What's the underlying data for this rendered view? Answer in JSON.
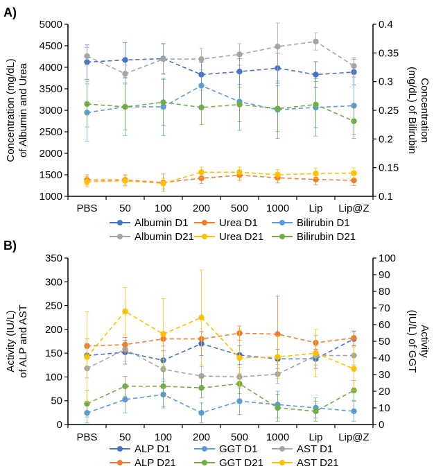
{
  "chart_data": [
    {
      "panel_label": "A)",
      "type": "line",
      "categories": [
        "PBS",
        "50",
        "100",
        "200",
        "500",
        "1000",
        "Lip",
        "Lip@Z"
      ],
      "ylabel_left": "Concentration (mg/dL) of Albumin and Urea",
      "ylabel_right": "Concentration (mg/dL) of Bilirubin",
      "ylim_left": [
        1000,
        5000
      ],
      "yticks_left": [
        1000,
        1500,
        2000,
        2500,
        3000,
        3500,
        4000,
        4500,
        5000
      ],
      "ylim_right": [
        0.1,
        0.4
      ],
      "yticks_right": [
        0.1,
        0.15,
        0.2,
        0.25,
        0.3,
        0.35,
        0.4
      ],
      "ytick_labels_right": [
        "0.1",
        "0.15",
        "0.2",
        "0.25",
        "0.3",
        "0.35",
        "0.4"
      ],
      "legend_placement": "bottom",
      "series": [
        {
          "name": "Albumin D1",
          "axis": "left",
          "color": "#4472C4",
          "values": [
            4120,
            4170,
            4200,
            3830,
            3900,
            3980,
            3830,
            3890
          ],
          "err": [
            400,
            400,
            350,
            300,
            300,
            350,
            300,
            300
          ]
        },
        {
          "name": "Urea D1",
          "axis": "left",
          "color": "#ED7D31",
          "values": [
            1380,
            1380,
            1320,
            1420,
            1490,
            1430,
            1390,
            1370
          ],
          "err": [
            120,
            120,
            200,
            120,
            120,
            120,
            120,
            120
          ]
        },
        {
          "name": "Bilirubin D1",
          "axis": "right",
          "color": "#5B9BD5",
          "values": [
            0.246,
            0.256,
            0.256,
            0.293,
            0.265,
            0.251,
            0.255,
            0.258
          ],
          "err": [
            0.05,
            0.05,
            0.05,
            0.04,
            0.05,
            0.05,
            0.05,
            0.05
          ]
        },
        {
          "name": "Albumin D21",
          "axis": "left",
          "color": "#A5A5A5",
          "values": [
            4260,
            3850,
            4190,
            4190,
            4300,
            4480,
            4600,
            4030
          ],
          "err": [
            200,
            200,
            350,
            250,
            250,
            550,
            200,
            200
          ]
        },
        {
          "name": "Urea D21",
          "axis": "left",
          "color": "#FFC000",
          "values": [
            1340,
            1360,
            1300,
            1560,
            1560,
            1500,
            1530,
            1540
          ],
          "err": [
            120,
            120,
            120,
            120,
            120,
            120,
            120,
            120
          ]
        },
        {
          "name": "Bilirubin D21",
          "axis": "right",
          "color": "#70AD47",
          "values": [
            0.261,
            0.256,
            0.264,
            0.255,
            0.26,
            0.253,
            0.26,
            0.231
          ],
          "err": [
            0.04,
            0.04,
            0.04,
            0.03,
            0.03,
            0.04,
            0.04,
            0.03
          ]
        }
      ]
    },
    {
      "panel_label": "B)",
      "type": "line",
      "categories": [
        "PBS",
        "50",
        "100",
        "200",
        "500",
        "1000",
        "Lip",
        "Lip@Z"
      ],
      "ylabel_left": "Activity (IU/L) of ALP and AST",
      "ylabel_right": "Activity (IU/L) of GGT",
      "ylim_left": [
        0,
        350
      ],
      "yticks_left": [
        0,
        50,
        100,
        150,
        200,
        250,
        300,
        350
      ],
      "ylim_right": [
        0,
        100
      ],
      "yticks_right": [
        0,
        10,
        20,
        30,
        40,
        50,
        60,
        70,
        80,
        90,
        100
      ],
      "legend_placement": "bottom",
      "series": [
        {
          "name": "ALP D1",
          "axis": "left",
          "color": "#4472C4",
          "values": [
            145,
            152,
            135,
            170,
            146,
            138,
            138,
            180
          ],
          "err": [
            25,
            25,
            20,
            25,
            20,
            20,
            20,
            15
          ]
        },
        {
          "name": "GGT D1",
          "axis": "right",
          "color": "#5B9BD5",
          "values": [
            7,
            15,
            18,
            7,
            14,
            12,
            10,
            8
          ],
          "err": [
            6,
            8,
            8,
            6,
            8,
            8,
            6,
            6
          ]
        },
        {
          "name": "AST D1",
          "axis": "left",
          "color": "#A5A5A5",
          "values": [
            118,
            158,
            116,
            102,
            100,
            106,
            145,
            145
          ],
          "err": [
            20,
            25,
            20,
            20,
            20,
            20,
            20,
            20
          ]
        },
        {
          "name": "ALP D21",
          "axis": "left",
          "color": "#ED7D31",
          "values": [
            165,
            168,
            180,
            180,
            192,
            190,
            172,
            182
          ],
          "err": [
            15,
            15,
            15,
            15,
            15,
            80,
            15,
            15
          ]
        },
        {
          "name": "GGT D21",
          "axis": "right",
          "color": "#70AD47",
          "values": [
            12.5,
            23,
            23,
            22,
            24.5,
            10,
            8,
            20.5
          ],
          "err": [
            8,
            6,
            12,
            6,
            6,
            8,
            6,
            6
          ]
        },
        {
          "name": "AST D21",
          "axis": "left",
          "color": "#FFC000",
          "values": [
            142,
            238,
            190,
            225,
            140,
            142,
            150,
            117
          ],
          "err": [
            95,
            50,
            75,
            100,
            60,
            45,
            50,
            45
          ]
        }
      ]
    }
  ]
}
